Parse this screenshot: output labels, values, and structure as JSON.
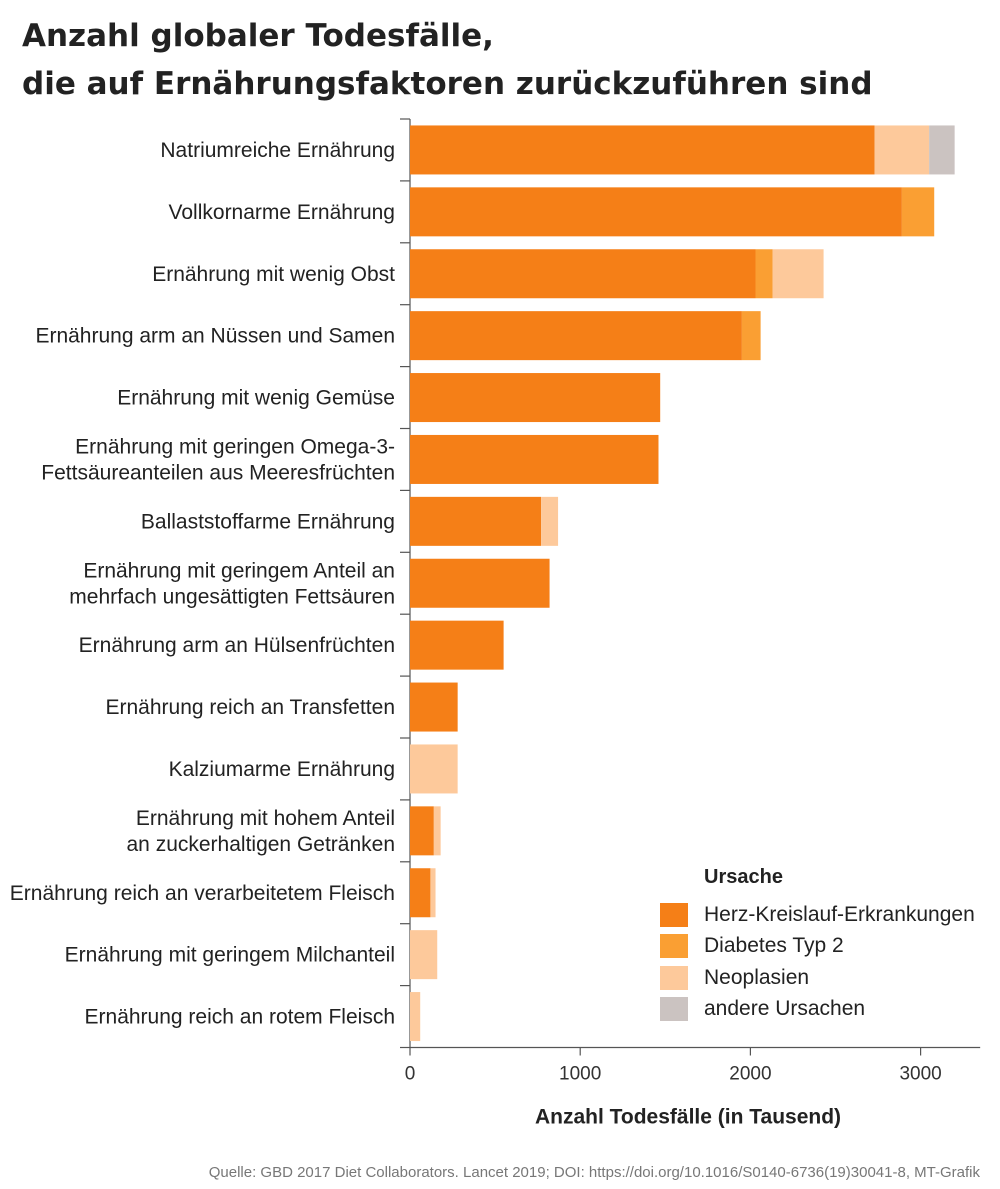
{
  "title_line1": "Anzahl globaler Todesfälle,",
  "title_line2": "die auf Ernährungsfaktoren zurückzuführen sind",
  "source": "Quelle: GBD 2017 Diet Collaborators. Lancet 2019; DOI: https://doi.org/10.1016/S0140-6736(19)30041-8, MT-Grafik",
  "legend_title": "Ursache",
  "colors": {
    "Herz-Kreislauf-Erkrankungen": "#f57f17",
    "Diabetes Typ 2": "#fa9f33",
    "Neoplasien": "#fdc99b",
    "andere Ursachen": "#cbc3c1"
  },
  "chart_data": {
    "type": "bar",
    "orientation": "horizontal",
    "stacked": true,
    "xlabel": "Anzahl Todesfälle (in Tausend)",
    "ylabel": "",
    "xlim": [
      0,
      3350
    ],
    "xticks": [
      0,
      1000,
      2000,
      3000
    ],
    "grid": false,
    "legend_placement": "bottom-right",
    "categories": [
      [
        "Natriumreiche Ernährung"
      ],
      [
        "Vollkornarme Ernährung"
      ],
      [
        "Ernährung mit wenig Obst"
      ],
      [
        "Ernährung arm an Nüssen und Samen"
      ],
      [
        "Ernährung mit wenig Gemüse"
      ],
      [
        "Ernährung mit geringen Omega-3-",
        "Fettsäureanteilen aus Meeresfrüchten"
      ],
      [
        "Ballaststoffarme Ernährung"
      ],
      [
        "Ernährung mit geringem Anteil an",
        "mehrfach ungesättigten Fettsäuren"
      ],
      [
        "Ernährung arm an Hülsenfrüchten"
      ],
      [
        "Ernährung reich an Transfetten"
      ],
      [
        "Kalziumarme Ernährung"
      ],
      [
        "Ernährung mit hohem Anteil",
        "an zuckerhaltigen Getränken"
      ],
      [
        "Ernährung reich an verarbeitetem Fleisch"
      ],
      [
        "Ernährung mit geringem Milchanteil"
      ],
      [
        "Ernährung reich an rotem Fleisch"
      ]
    ],
    "series": [
      {
        "name": "Herz-Kreislauf-Erkrankungen",
        "values": [
          2730,
          2890,
          2030,
          1950,
          1470,
          1460,
          770,
          820,
          550,
          280,
          0,
          140,
          120,
          0,
          0
        ]
      },
      {
        "name": "Diabetes Typ 2",
        "values": [
          0,
          190,
          100,
          110,
          0,
          0,
          0,
          0,
          0,
          0,
          0,
          0,
          0,
          0,
          0
        ]
      },
      {
        "name": "Neoplasien",
        "values": [
          320,
          0,
          300,
          0,
          0,
          0,
          100,
          0,
          0,
          0,
          280,
          40,
          30,
          160,
          60
        ]
      },
      {
        "name": "andere Ursachen",
        "values": [
          150,
          0,
          0,
          0,
          0,
          0,
          0,
          0,
          0,
          0,
          0,
          0,
          0,
          0,
          0
        ]
      }
    ]
  }
}
